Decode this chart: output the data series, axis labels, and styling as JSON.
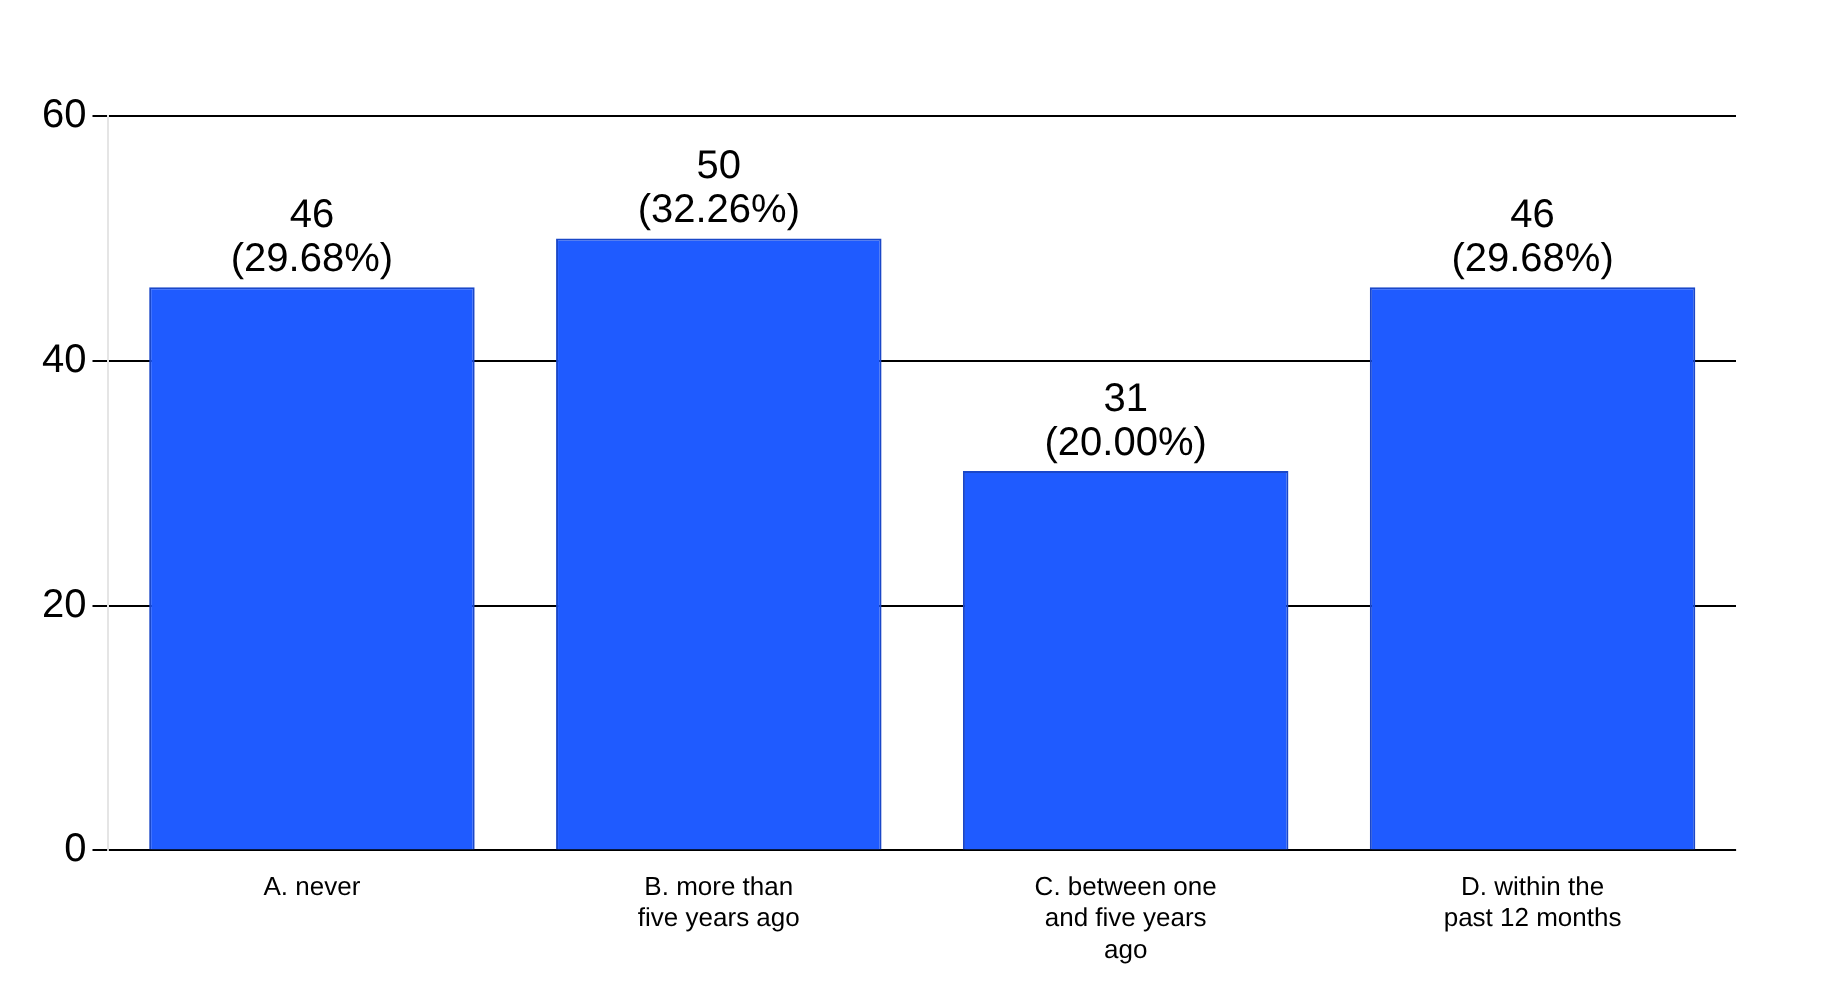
{
  "chart_data": {
    "type": "bar",
    "categories": [
      "A. never",
      "B. more than five years ago",
      "C. between one and five years ago",
      "D. within the past 12 months"
    ],
    "values": [
      46,
      50,
      31,
      46
    ],
    "color": "#1f5bff",
    "value_labels": [
      "46 (29.68%)",
      "50 (32.26%)",
      "31 (20.00%)",
      "46 (29.68%)"
    ],
    "ylim": [
      0,
      60
    ],
    "yticks": [
      0,
      20,
      40,
      60
    ],
    "grid": "y"
  }
}
